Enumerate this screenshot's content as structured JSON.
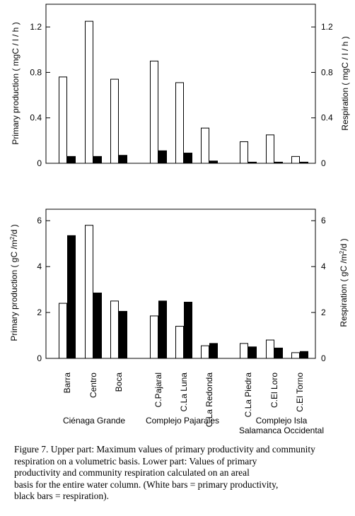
{
  "chart_data": [
    {
      "type": "bar",
      "categories": [
        "Barra",
        "Centro",
        "Boca",
        "C.Pajaral",
        "C.La Luna",
        "C.La Redonda",
        "C.La Piedra",
        "C.El Loro",
        "C.El Torno"
      ],
      "series": [
        {
          "values": [
            0.76,
            1.25,
            0.74,
            0.9,
            0.71,
            0.31,
            0.19,
            0.25,
            0.06
          ]
        },
        {
          "values": [
            0.06,
            0.06,
            0.07,
            0.11,
            0.09,
            0.02,
            0.01,
            0.01,
            0.01
          ]
        }
      ],
      "ylabel": "Primary production ( mgC / l / h )",
      "ylabel_right": "Respiration ( mgC / l / h )",
      "ylim": [
        0,
        1.4
      ],
      "yticks": [
        "0",
        "0.4",
        "0.8",
        "1.2"
      ],
      "grid": false
    },
    {
      "type": "bar",
      "categories": [
        "Barra",
        "Centro",
        "Boca",
        "C.Pajaral",
        "C.La Luna",
        "C.La Redonda",
        "C.La Piedra",
        "C.El Loro",
        "C.El Torno"
      ],
      "series": [
        {
          "values": [
            2.4,
            5.8,
            2.5,
            1.85,
            1.4,
            0.55,
            0.65,
            0.8,
            0.25
          ]
        },
        {
          "values": [
            5.35,
            2.85,
            2.05,
            2.5,
            2.45,
            0.65,
            0.5,
            0.45,
            0.3
          ]
        }
      ],
      "ylabel_prefix": "Primary production ( gC /m",
      "ylabel_right_prefix": "Respiration ( gC /m",
      "ylabel_sup": "2",
      "ylabel_suffix": "/d )",
      "ylim": [
        0,
        6.5
      ],
      "yticks": [
        "0",
        "2",
        "4",
        "6"
      ],
      "grid": false
    }
  ],
  "groups": [
    "Ciénaga Grande",
    "Complejo Pajarales",
    "Complejo Isla",
    "Salamanca Occidental"
  ],
  "caption": [
    "Figure 7. Upper part: Maximum values of primary productivity and community",
    "respiration on a volumetric basis. Lower part: Values of primary",
    "productivity and community respiration calculated on an areal",
    "basis for the entire water column. (White bars = primary productivity,",
    "black bars = respiration)."
  ]
}
